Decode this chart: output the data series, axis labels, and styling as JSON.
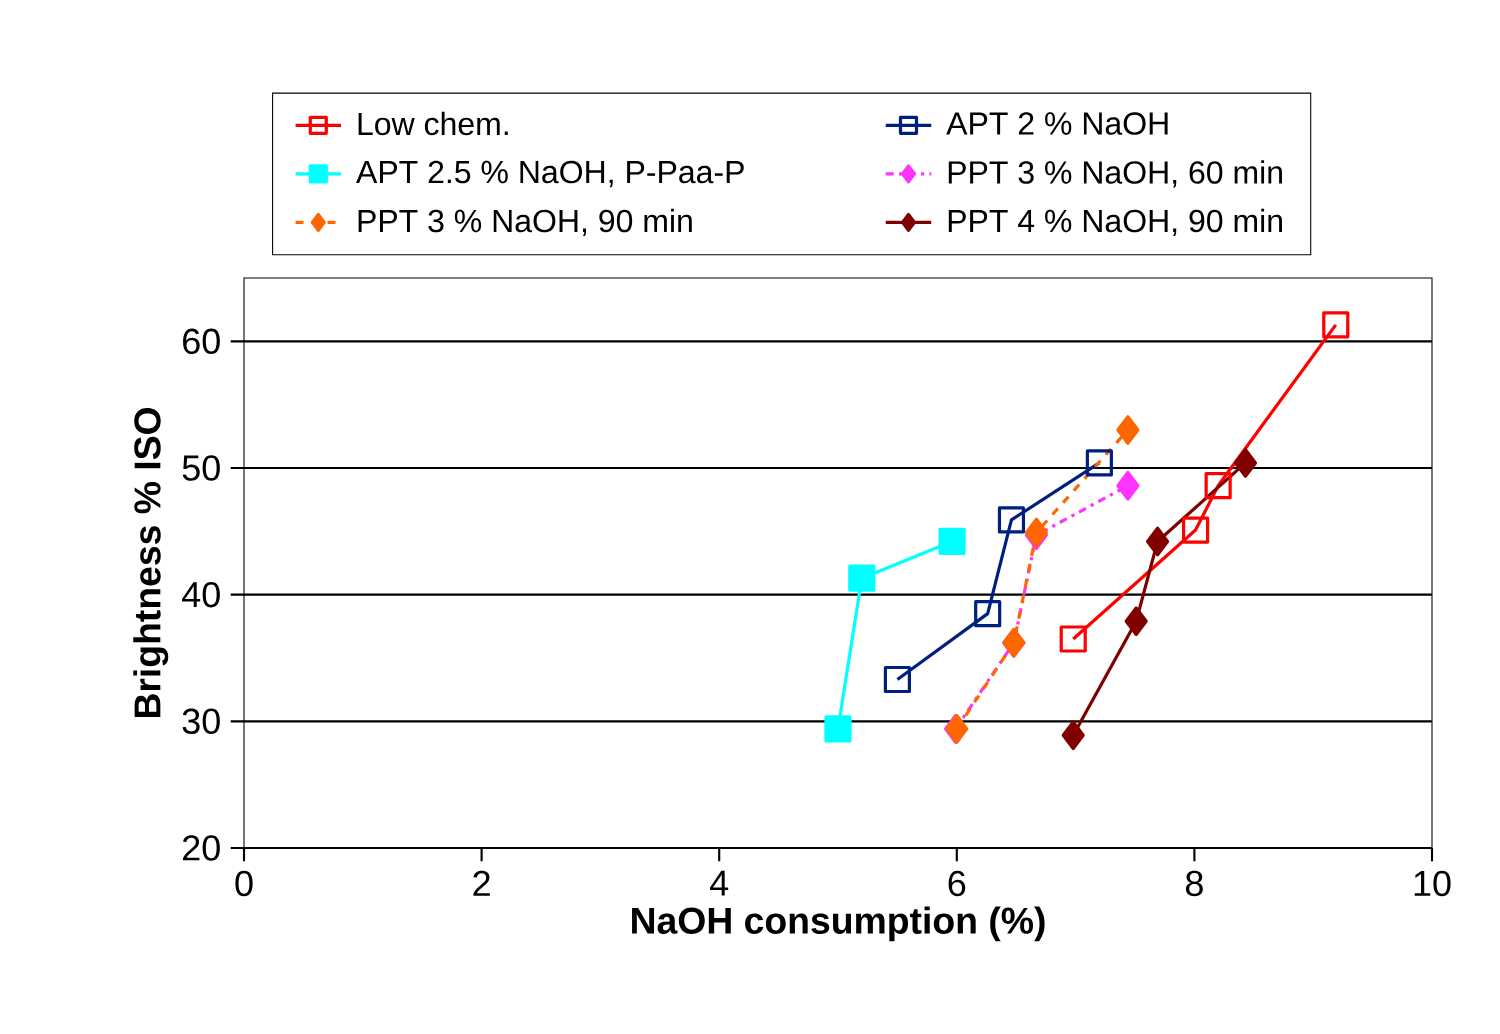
{
  "chart_data": {
    "type": "line",
    "xlabel": "NaOH consumption (%)",
    "ylabel": "Brightness % ISO",
    "xlim": [
      0,
      10
    ],
    "xticks": [
      0,
      2,
      4,
      6,
      8,
      10
    ],
    "ylim": [
      20,
      65
    ],
    "yticks": [
      20,
      30,
      40,
      50,
      60
    ],
    "grid": "y",
    "legend": "top",
    "series": [
      {
        "name": "Low chem.",
        "color": "#ff0000",
        "marker": "square-open",
        "line_style": "solid",
        "x": [
          6.98,
          8.01,
          8.2,
          9.19
        ],
        "values": [
          36.5,
          45.1,
          48.6,
          61.3
        ]
      },
      {
        "name": "APT 2 % NaOH",
        "color": "#002080",
        "marker": "square-open",
        "line_style": "solid",
        "x": [
          5.5,
          6.26,
          6.46,
          7.2
        ],
        "values": [
          33.3,
          38.5,
          45.9,
          50.4
        ]
      },
      {
        "name": "APT 2.5 % NaOH, P-Paa-P",
        "color": "#00ffff",
        "marker": "square",
        "line_style": "solid",
        "x": [
          5.0,
          5.2,
          5.96
        ],
        "values": [
          29.4,
          41.3,
          44.2
        ]
      },
      {
        "name": "PPT 3 % NaOH, 60 min",
        "color": "#ff33ff",
        "marker": "diamond",
        "line_style": "dashdot",
        "x": [
          5.99,
          6.48,
          6.67,
          7.44
        ],
        "values": [
          29.4,
          36.2,
          44.7,
          48.6
        ]
      },
      {
        "name": "PPT 3 % NaOH, 90 min",
        "color": "#ff6600",
        "marker": "diamond",
        "line_style": "dashed",
        "x": [
          6.0,
          6.48,
          6.67,
          7.44
        ],
        "values": [
          29.4,
          36.2,
          44.9,
          53.0
        ]
      },
      {
        "name": "PPT 4 % NaOH, 90 min",
        "color": "#800000",
        "marker": "diamond",
        "line_style": "solid",
        "x": [
          6.98,
          7.51,
          7.69,
          8.43
        ],
        "values": [
          28.9,
          37.9,
          44.2,
          50.4
        ]
      }
    ]
  }
}
